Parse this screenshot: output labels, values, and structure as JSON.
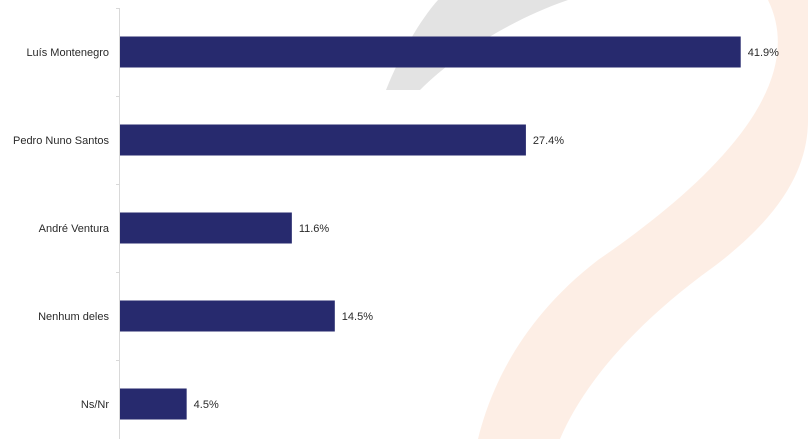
{
  "chart_data": {
    "type": "bar",
    "orientation": "horizontal",
    "categories": [
      "Luís Montenegro",
      "Pedro Nuno Santos",
      "André Ventura",
      "Nenhum deles",
      "Ns/Nr"
    ],
    "values": [
      41.9,
      27.4,
      11.6,
      14.5,
      4.5
    ],
    "value_labels": [
      "41.9%",
      "27.4%",
      "11.6%",
      "14.5%",
      "4.5%"
    ],
    "xlim": [
      0,
      43.0
    ],
    "bar_color": "#272a6e",
    "grid": false,
    "legend": "none"
  },
  "background": {
    "swoosh_light_color": "#fdeee5",
    "swoosh_grey_color": "#e3e3e3"
  }
}
